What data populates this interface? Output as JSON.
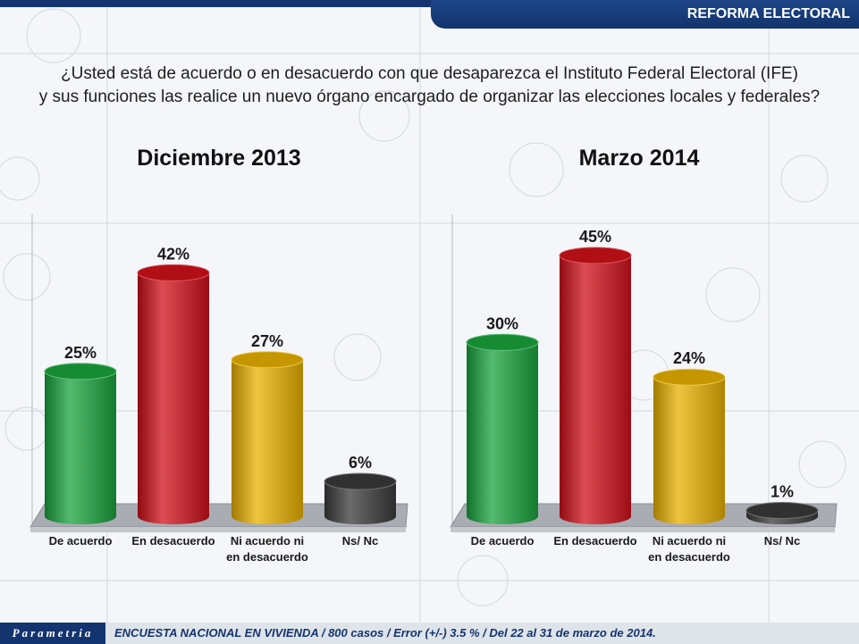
{
  "header": {
    "label": "REFORMA ELECTORAL"
  },
  "question": {
    "line1": "¿Usted está de acuerdo o en desacuerdo con que desaparezca el Instituto Federal Electoral (IFE)",
    "line2": "y sus funciones las realice un nuevo órgano encargado de organizar las elecciones locales y federales?"
  },
  "footer": {
    "brand": "Parametria",
    "note": "ENCUESTA NACIONAL EN VIVIENDA / 800 casos / Error (+/-) 3.5 % / Del 22 al 31 de marzo de 2014."
  },
  "chart_data": [
    {
      "type": "bar",
      "title": "Diciembre 2013",
      "categories": [
        "De acuerdo",
        "En desacuerdo",
        "Ni acuerdo ni en desacuerdo",
        "Ns/ Nc"
      ],
      "category_lines": [
        [
          "De acuerdo"
        ],
        [
          "En desacuerdo"
        ],
        [
          "Ni acuerdo ni",
          "en desacuerdo"
        ],
        [
          "Ns/ Nc"
        ]
      ],
      "values": [
        25,
        42,
        27,
        6
      ],
      "labels": [
        "25%",
        "42%",
        "27%",
        "6%"
      ],
      "colors": [
        "#1aa33d",
        "#d0101a",
        "#e8b000",
        "#3a3a3a"
      ],
      "ylim": [
        0,
        50
      ]
    },
    {
      "type": "bar",
      "title": "Marzo 2014",
      "categories": [
        "De acuerdo",
        "En desacuerdo",
        "Ni acuerdo ni en desacuerdo",
        "Ns/ Nc"
      ],
      "category_lines": [
        [
          "De acuerdo"
        ],
        [
          "En desacuerdo"
        ],
        [
          "Ni acuerdo ni",
          "en desacuerdo"
        ],
        [
          "Ns/ Nc"
        ]
      ],
      "values": [
        30,
        45,
        24,
        1
      ],
      "labels": [
        "30%",
        "45%",
        "24%",
        "1%"
      ],
      "colors": [
        "#1aa33d",
        "#d0101a",
        "#e8b000",
        "#3a3a3a"
      ],
      "ylim": [
        0,
        50
      ]
    }
  ]
}
